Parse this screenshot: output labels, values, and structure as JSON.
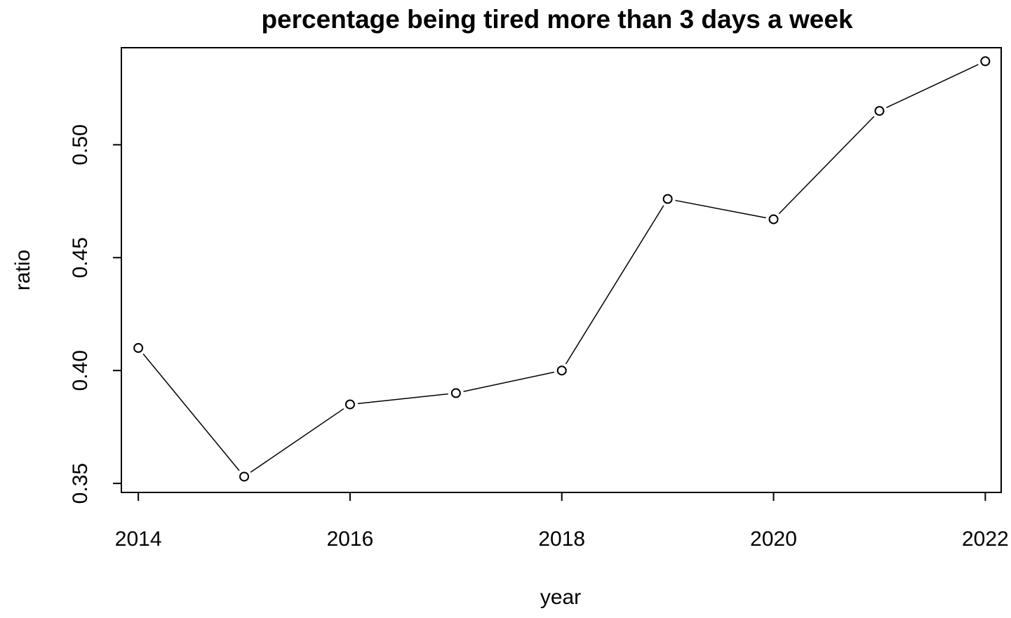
{
  "chart_data": {
    "type": "line",
    "title": "percentage being tired more than 3 days a week",
    "xlabel": "year",
    "ylabel": "ratio",
    "x": [
      2014,
      2015,
      2016,
      2017,
      2018,
      2019,
      2020,
      2021,
      2022
    ],
    "series": [
      {
        "values": [
          0.41,
          0.353,
          0.385,
          0.39,
          0.4,
          0.476,
          0.467,
          0.515,
          0.537
        ]
      }
    ],
    "xlim": [
      2013.84,
      2022.15
    ],
    "ylim": [
      0.346,
      0.543
    ],
    "x_ticks": [
      2014,
      2016,
      2018,
      2020,
      2022
    ],
    "x_tick_labels": [
      "2014",
      "2016",
      "2018",
      "2020",
      "2022"
    ],
    "y_ticks": [
      0.35,
      0.4,
      0.45,
      0.5
    ],
    "y_tick_labels": [
      "0.35",
      "0.40",
      "0.45",
      "0.50"
    ],
    "grid": false,
    "marker": "open-circle",
    "line_color": "#000000"
  }
}
